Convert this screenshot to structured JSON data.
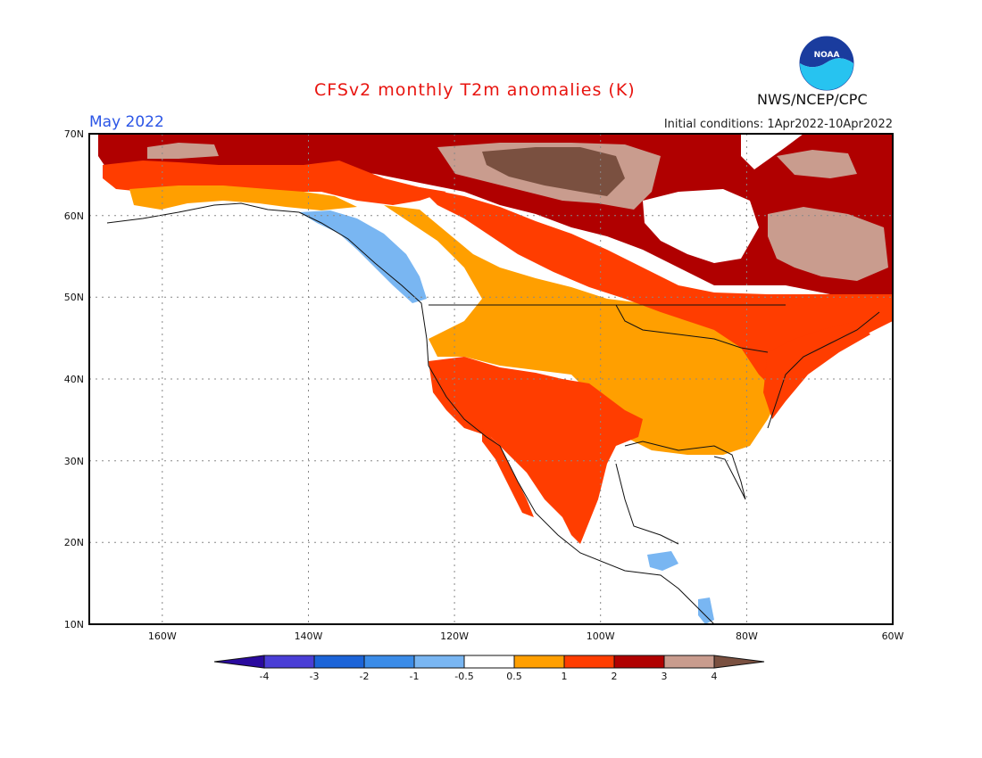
{
  "header": {
    "title": "CFSv2 monthly T2m anomalies (K)",
    "month": "May 2022",
    "initial_conditions": "Initial conditions: 1Apr2022-10Apr2022",
    "agency": "NWS/NCEP/CPC",
    "logo_text": "NOAA"
  },
  "axes": {
    "lat_labels": [
      "70N",
      "60N",
      "50N",
      "40N",
      "30N",
      "20N",
      "10N"
    ],
    "lon_labels": [
      "160W",
      "140W",
      "120W",
      "100W",
      "80W",
      "60W"
    ]
  },
  "legend": {
    "labels": [
      "-4",
      "-3",
      "-2",
      "-1",
      "-0.5",
      "0.5",
      "1",
      "2",
      "3",
      "4"
    ],
    "colors": [
      "#2a0a9e",
      "#4a3ed6",
      "#1c64d8",
      "#3b8ce8",
      "#79b6f2",
      "#ffffff",
      "#ff9f00",
      "#ff3d00",
      "#b00000",
      "#c99c8e",
      "#7a5040"
    ]
  },
  "colors": {
    "title": "#e8140f",
    "month": "#2b55e6",
    "orange": "#ff9f00",
    "red_orange": "#ff3d00",
    "dark_red": "#b00000",
    "tan": "#c99c8e",
    "brown": "#7a5040",
    "light_blue": "#79b6f2"
  }
}
